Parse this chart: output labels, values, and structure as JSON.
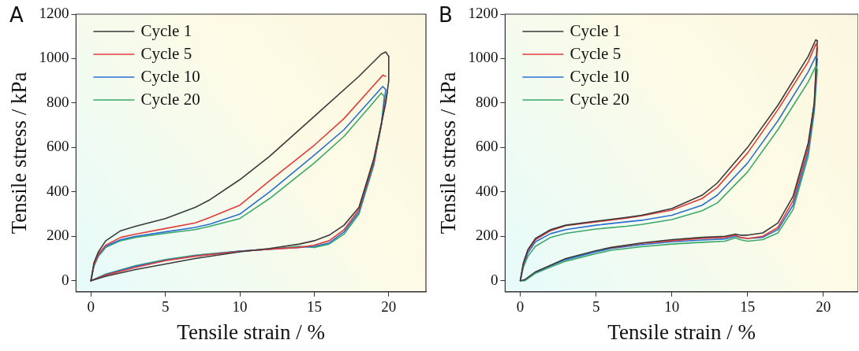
{
  "chart_data": [
    {
      "type": "line",
      "annotations": [
        "A"
      ],
      "xlabel": "Tensile strain / %",
      "ylabel": "Tensile stress / kPa",
      "xlim": [
        -1,
        22.5
      ],
      "ylim": [
        -50,
        1200
      ],
      "xticks": [
        0,
        5,
        10,
        15,
        20
      ],
      "yticks": [
        0,
        200,
        400,
        600,
        800,
        1000,
        1200
      ],
      "legend": "top left",
      "grid": false,
      "marker": "none",
      "line_style": "solid",
      "series": [
        {
          "name": "Cycle 1",
          "color": "#3a3a3a",
          "x": [
            0,
            0.2,
            0.5,
            1,
            2,
            3,
            5,
            7,
            8,
            10,
            12,
            15,
            18,
            19.5,
            19.8,
            20
          ],
          "values": [
            0,
            80,
            130,
            180,
            225,
            245,
            280,
            330,
            365,
            455,
            560,
            740,
            920,
            1020,
            1030,
            1010
          ]
        },
        {
          "name": "Cycle 5",
          "color": "#e03c3c",
          "x": [
            0,
            0.2,
            0.5,
            1,
            2,
            3,
            5,
            7,
            8,
            10,
            12,
            15,
            17,
            19,
            19.6,
            19.8
          ],
          "values": [
            0,
            70,
            120,
            160,
            195,
            210,
            235,
            260,
            285,
            340,
            450,
            610,
            730,
            880,
            925,
            920
          ]
        },
        {
          "name": "Cycle 10",
          "color": "#2a6fd0",
          "x": [
            0,
            0.2,
            0.5,
            1,
            2,
            3,
            5,
            7,
            8,
            10,
            12,
            15,
            17,
            19,
            19.6,
            19.8
          ],
          "values": [
            0,
            70,
            115,
            155,
            185,
            200,
            220,
            240,
            255,
            300,
            400,
            565,
            680,
            830,
            875,
            860
          ]
        },
        {
          "name": "Cycle 20",
          "color": "#3aa86a",
          "x": [
            0,
            0.2,
            0.5,
            1,
            2,
            3,
            5,
            7,
            8,
            10,
            12,
            15,
            17,
            19,
            19.5,
            19.7
          ],
          "values": [
            0,
            65,
            110,
            150,
            180,
            195,
            213,
            230,
            245,
            280,
            370,
            530,
            650,
            805,
            845,
            830
          ]
        },
        {
          "color": "#3a3a3a",
          "x": [
            0,
            1,
            3,
            5,
            7,
            10,
            12,
            14,
            15,
            16,
            17,
            18,
            19,
            19.8,
            20,
            20
          ],
          "values": [
            0,
            20,
            50,
            75,
            100,
            130,
            145,
            165,
            180,
            205,
            250,
            330,
            550,
            800,
            900,
            1010
          ]
        },
        {
          "color": "#e03c3c",
          "x": [
            0,
            1,
            3,
            5,
            7,
            10,
            12,
            14,
            15,
            16,
            17,
            18,
            19,
            19.5,
            19.9
          ],
          "values": [
            0,
            25,
            60,
            90,
            110,
            132,
            142,
            150,
            160,
            180,
            230,
            320,
            540,
            700,
            850
          ]
        },
        {
          "color": "#2a6fd0",
          "x": [
            0,
            1,
            3,
            5,
            7,
            10,
            12,
            14,
            15,
            16,
            17,
            18,
            19,
            19.5,
            19.8
          ],
          "values": [
            0,
            28,
            65,
            92,
            112,
            133,
            142,
            150,
            155,
            170,
            220,
            310,
            530,
            700,
            860
          ]
        },
        {
          "color": "#3aa86a",
          "x": [
            0,
            1,
            3,
            5,
            7,
            10,
            12,
            14,
            15,
            16,
            17,
            18,
            19,
            19.5,
            19.7
          ],
          "values": [
            0,
            30,
            68,
            95,
            115,
            133,
            142,
            155,
            150,
            165,
            210,
            300,
            520,
            700,
            830
          ]
        }
      ]
    },
    {
      "type": "line",
      "annotations": [
        "B"
      ],
      "xlabel": "Tensile strain / %",
      "ylabel": "Tensile stress / kPa",
      "xlim": [
        -1,
        22.3
      ],
      "ylim": [
        -50,
        1200
      ],
      "xticks": [
        0,
        5,
        10,
        15,
        20
      ],
      "yticks": [
        0,
        200,
        400,
        600,
        800,
        1000,
        1200
      ],
      "legend": "top left",
      "grid": false,
      "marker": "none",
      "line_style": "solid",
      "series": [
        {
          "name": "Cycle 1",
          "color": "#3a3a3a",
          "x": [
            0,
            0.2,
            0.5,
            1,
            2,
            3,
            5,
            7,
            8,
            10,
            12,
            13,
            15,
            17,
            19,
            19.5,
            19.6
          ],
          "values": [
            0,
            80,
            140,
            190,
            230,
            250,
            268,
            285,
            295,
            325,
            385,
            440,
            600,
            790,
            1010,
            1085,
            1080
          ]
        },
        {
          "name": "Cycle 5",
          "color": "#e03c3c",
          "x": [
            0,
            0.2,
            0.5,
            1,
            2,
            3,
            5,
            7,
            8,
            10,
            12,
            13,
            15,
            17,
            19,
            19.5,
            19.6
          ],
          "values": [
            0,
            75,
            135,
            185,
            225,
            248,
            265,
            282,
            292,
            318,
            370,
            420,
            575,
            770,
            985,
            1065,
            1050
          ]
        },
        {
          "name": "Cycle 10",
          "color": "#2a6fd0",
          "x": [
            0,
            0.2,
            0.5,
            1,
            2,
            3,
            5,
            7,
            8,
            10,
            12,
            13,
            15,
            17,
            19,
            19.5,
            19.6
          ],
          "values": [
            0,
            70,
            125,
            175,
            212,
            230,
            250,
            265,
            272,
            295,
            340,
            385,
            530,
            720,
            940,
            1010,
            1000
          ]
        },
        {
          "name": "Cycle 20",
          "color": "#3aa86a",
          "x": [
            0,
            0.2,
            0.5,
            1,
            2,
            3,
            5,
            7,
            8,
            10,
            12,
            13,
            15,
            17,
            19,
            19.5,
            19.6
          ],
          "values": [
            0,
            60,
            110,
            155,
            195,
            213,
            233,
            245,
            253,
            275,
            315,
            350,
            490,
            680,
            895,
            965,
            950
          ]
        },
        {
          "color": "#3a3a3a",
          "x": [
            0,
            0.3,
            1,
            2,
            3,
            5,
            6,
            8,
            10,
            12,
            13.5,
            14.2,
            14.5,
            15,
            16,
            17,
            18,
            19,
            19.4,
            19.6
          ],
          "values": [
            0,
            5,
            40,
            70,
            100,
            135,
            150,
            170,
            185,
            195,
            200,
            210,
            205,
            205,
            215,
            260,
            380,
            620,
            800,
            1080
          ]
        },
        {
          "color": "#e03c3c",
          "x": [
            6,
            8,
            10,
            12,
            13.5,
            14.2,
            14.5,
            15,
            16,
            17,
            18,
            19,
            19.4,
            19.6
          ],
          "values": [
            148,
            168,
            180,
            190,
            195,
            205,
            195,
            190,
            200,
            240,
            360,
            600,
            800,
            1050
          ]
        },
        {
          "color": "#2a6fd0",
          "x": [
            1,
            2,
            3,
            5,
            6,
            8,
            10,
            12,
            13.5,
            14.2,
            14.5,
            15,
            16,
            17,
            18,
            19,
            19.4,
            19.6
          ],
          "values": [
            38,
            68,
            95,
            130,
            145,
            162,
            175,
            183,
            188,
            200,
            195,
            190,
            195,
            230,
            340,
            580,
            780,
            1000
          ]
        },
        {
          "color": "#3aa86a",
          "x": [
            0,
            0.3,
            1,
            2,
            3,
            5,
            6,
            8,
            10,
            12,
            13.5,
            14.2,
            14.5,
            15,
            16,
            17,
            18,
            19,
            19.4,
            19.6
          ],
          "values": [
            0,
            0,
            33,
            62,
            88,
            122,
            137,
            153,
            165,
            173,
            178,
            193,
            185,
            178,
            185,
            215,
            320,
            560,
            760,
            950
          ]
        }
      ]
    }
  ]
}
